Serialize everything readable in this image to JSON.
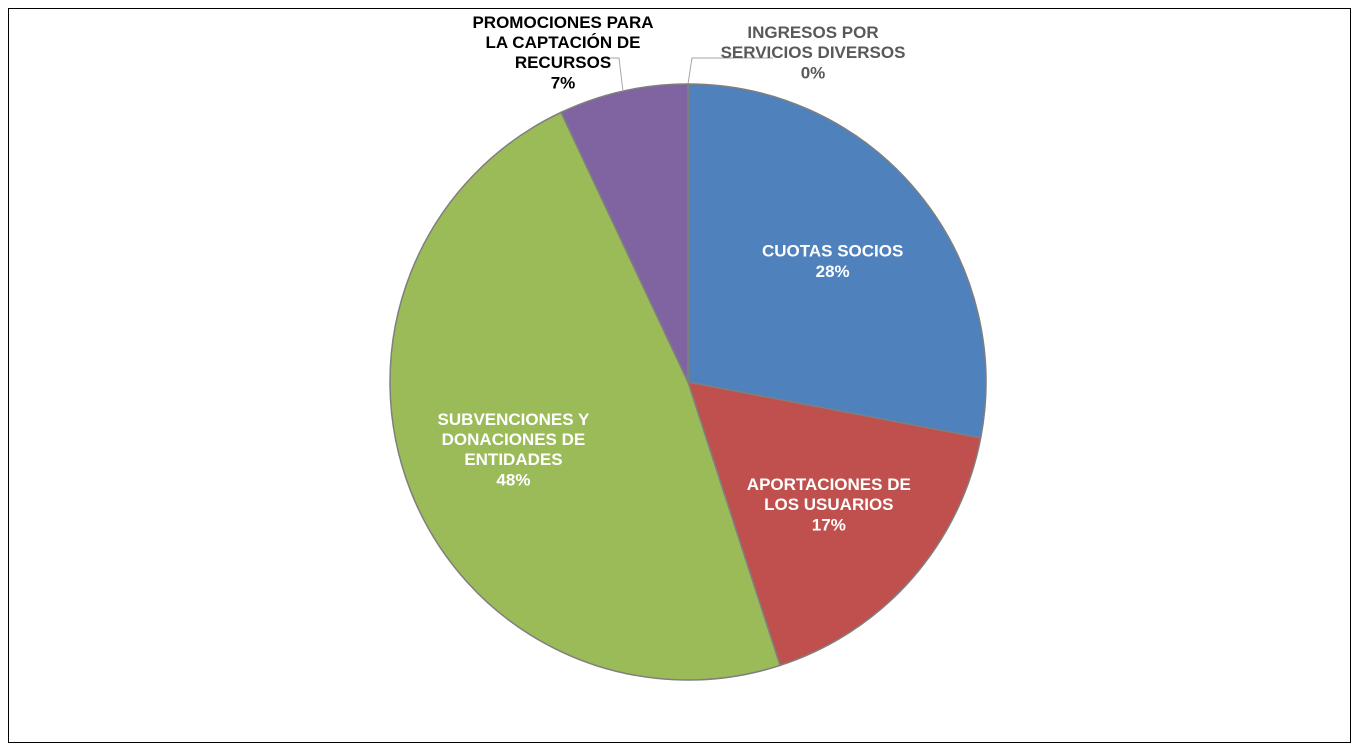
{
  "chart_data": {
    "type": "pie",
    "categories": [
      "CUOTAS SOCIOS",
      "APORTACIONES DE LOS USUARIOS",
      "SUBVENCIONES Y DONACIONES DE ENTIDADES",
      "PROMOCIONES PARA LA CAPTACIÓN DE RECURSOS",
      "INGRESOS POR SERVICIOS DIVERSOS"
    ],
    "values": [
      28,
      17,
      48,
      7,
      0
    ],
    "value_labels": [
      "28%",
      "17%",
      "48%",
      "7%",
      "0%"
    ],
    "colors": [
      "#4f81bd",
      "#c0504d",
      "#9bbb59",
      "#8064a2",
      "#4bacc6"
    ]
  }
}
